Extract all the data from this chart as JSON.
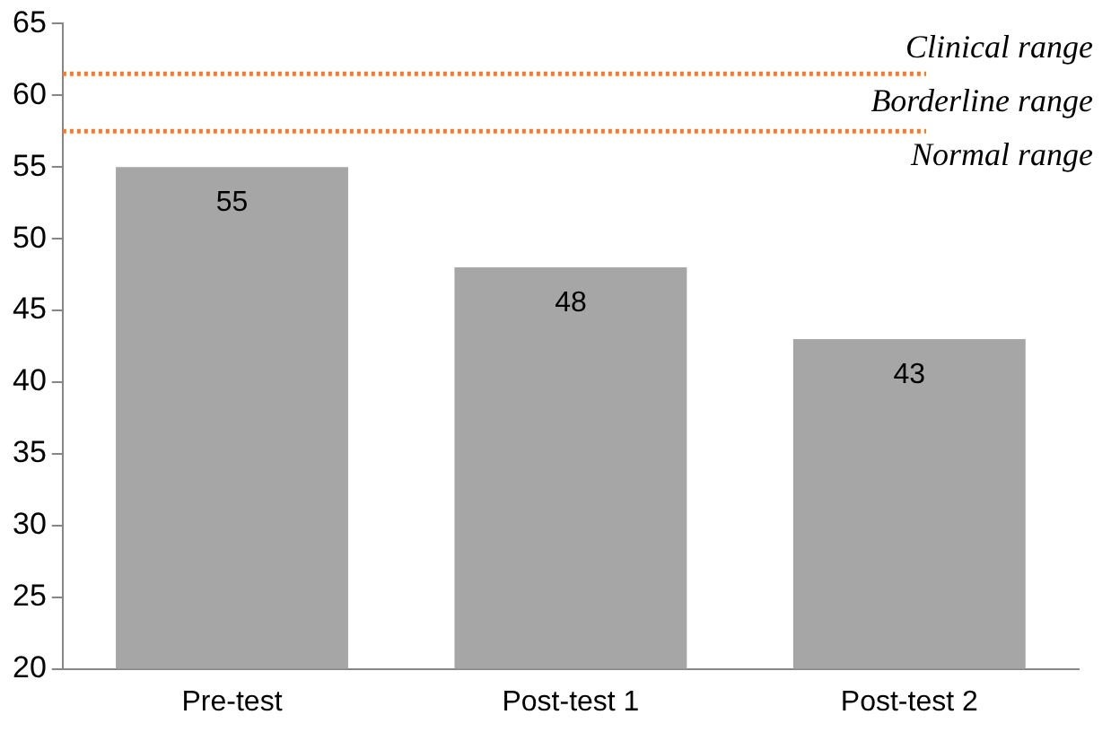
{
  "chart_data": {
    "type": "bar",
    "categories": [
      "Pre-test",
      "Post-test 1",
      "Post-test 2"
    ],
    "values": [
      55,
      48,
      43
    ],
    "color": "#a6a6a6",
    "data_labels": true,
    "ylim": [
      20,
      65
    ],
    "yticks": [
      20,
      25,
      30,
      35,
      40,
      45,
      50,
      55,
      60,
      65
    ],
    "grid": false,
    "ref_lines": [
      {
        "axis": "y",
        "value": 61.5,
        "color": "#ed7d31",
        "line_style": "dotted"
      },
      {
        "axis": "y",
        "value": 57.5,
        "color": "#ed7d31",
        "line_style": "dotted"
      }
    ],
    "annotations": [
      "Clinical range",
      "Borderline range",
      "Normal range"
    ]
  }
}
